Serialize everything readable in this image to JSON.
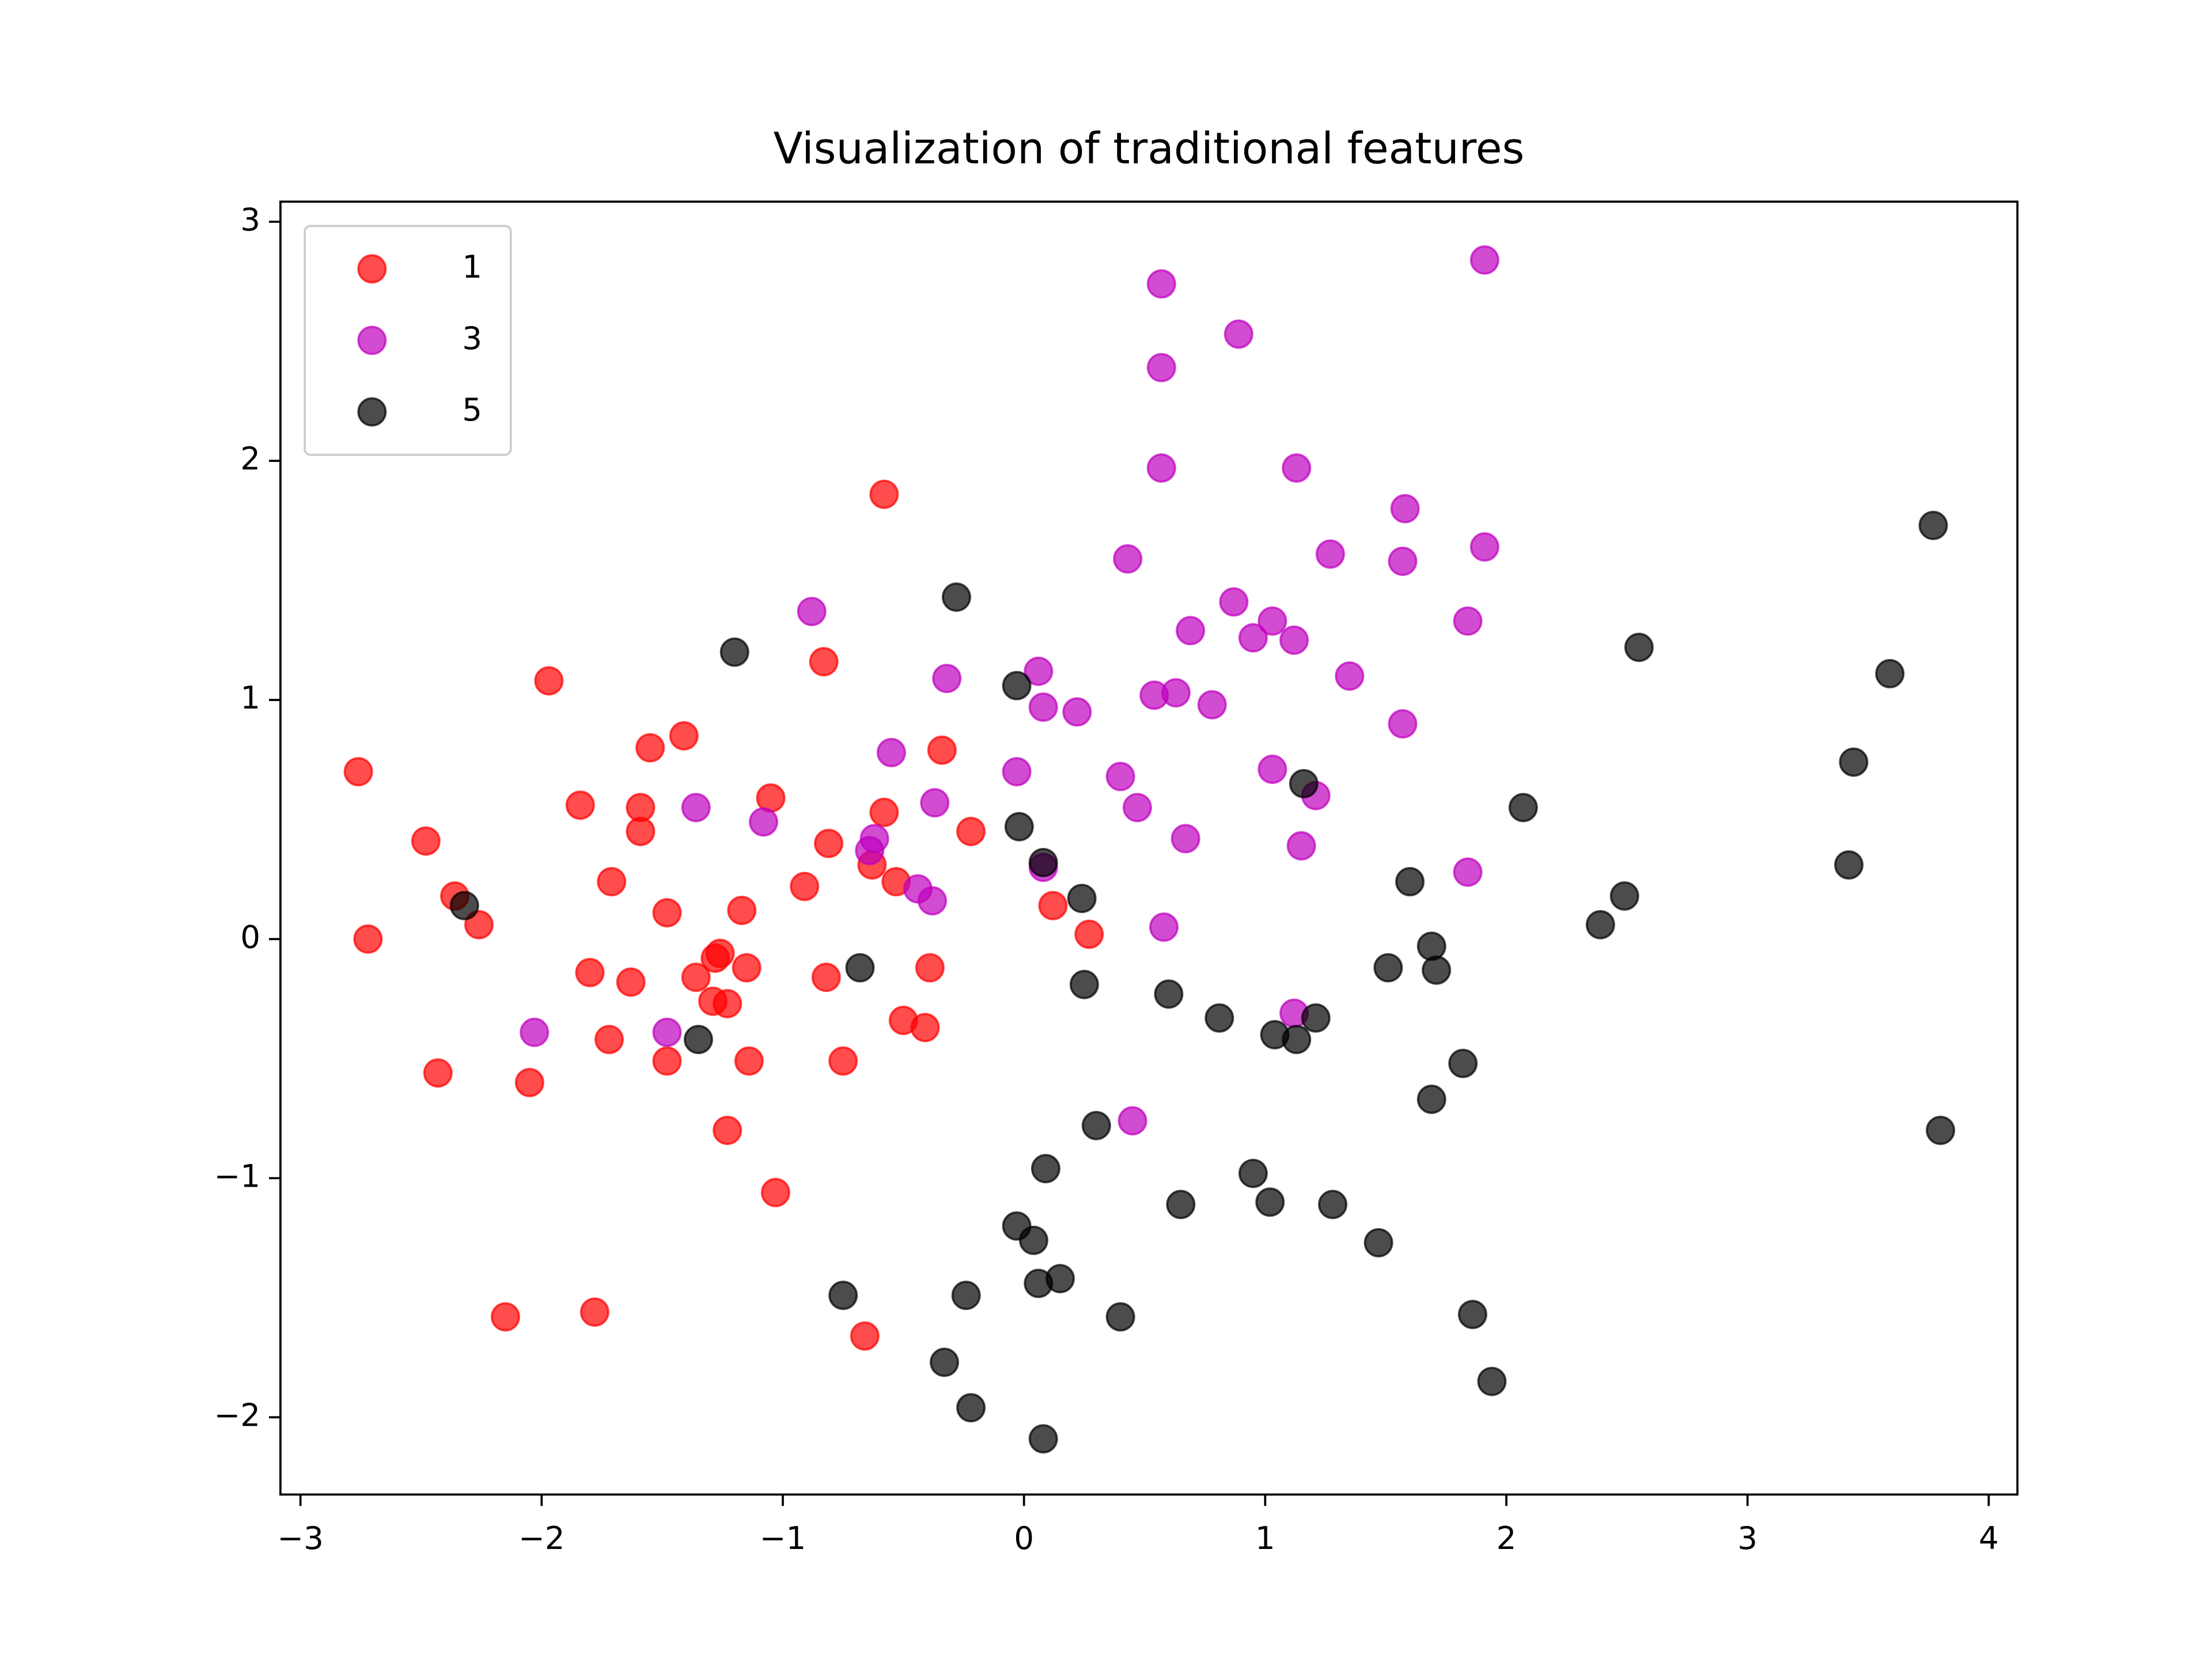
{
  "chart_data": {
    "type": "scatter",
    "title": "Visualization of traditional features",
    "xlim": [
      -3.083,
      4.119
    ],
    "ylim": [
      -2.323,
      3.084
    ],
    "xticks": [
      {
        "value": -3,
        "label": "−3"
      },
      {
        "value": -2,
        "label": "−2"
      },
      {
        "value": -1,
        "label": "−1"
      },
      0,
      1,
      2,
      3,
      4
    ],
    "yticks": [
      {
        "value": -2,
        "label": "−2"
      },
      {
        "value": -1,
        "label": "−1"
      },
      0,
      1,
      2,
      3
    ],
    "legend": "upper left",
    "alpha": 0.7,
    "series": [
      {
        "name": "1",
        "color": "#ff0000",
        "x": [
          -2.76,
          -2.72,
          -2.48,
          -2.43,
          -2.36,
          -2.26,
          -1.97,
          -2.05,
          -2.15,
          -1.84,
          -1.8,
          -1.78,
          -1.71,
          -1.72,
          -1.59,
          -1.59,
          -1.63,
          -1.55,
          -1.48,
          -1.48,
          -1.41,
          -1.36,
          -1.28,
          -1.26,
          -1.29,
          -1.23,
          -1.23,
          -1.17,
          -1.15,
          -1.14,
          -1.05,
          -1.03,
          -0.91,
          -0.83,
          -0.82,
          -0.81,
          -0.75,
          -0.66,
          -0.63,
          -0.58,
          -0.58,
          -0.53,
          -0.5,
          -0.41,
          -0.39,
          -0.34,
          -0.22,
          0.12,
          0.27
        ],
        "values": [
          0.7,
          0.0,
          0.41,
          -0.56,
          0.18,
          0.06,
          1.08,
          -0.6,
          -1.58,
          0.56,
          -0.14,
          -1.56,
          0.24,
          -0.42,
          0.55,
          0.45,
          -0.18,
          0.8,
          0.11,
          -0.51,
          0.85,
          -0.16,
          -0.08,
          -0.06,
          -0.26,
          -0.27,
          -0.8,
          0.12,
          -0.12,
          -0.51,
          0.59,
          -1.06,
          0.22,
          1.16,
          -0.16,
          0.4,
          -0.51,
          -1.66,
          0.31,
          1.86,
          0.53,
          0.24,
          -0.34,
          -0.37,
          -0.12,
          0.79,
          0.45,
          0.14,
          0.02
        ]
      },
      {
        "name": "3",
        "color": "#bf00bf",
        "x": [
          0.57,
          1.91,
          0.89,
          0.57,
          0.57,
          1.13,
          1.58,
          1.91,
          0.43,
          1.27,
          1.57,
          0.87,
          -0.88,
          1.03,
          1.84,
          0.69,
          0.95,
          1.12,
          -0.32,
          1.35,
          0.06,
          0.08,
          0.22,
          0.54,
          0.63,
          0.78,
          1.57,
          -0.55,
          -0.03,
          1.03,
          0.4,
          1.21,
          -1.36,
          0.47,
          -0.37,
          -1.08,
          -0.62,
          -0.64,
          0.67,
          1.15,
          1.84,
          0.08,
          -0.44,
          -0.38,
          0.58,
          -2.03,
          -1.48,
          1.12,
          0.45
        ],
        "values": [
          2.74,
          2.84,
          2.53,
          2.39,
          1.97,
          1.97,
          1.8,
          1.64,
          1.59,
          1.61,
          1.58,
          1.41,
          1.37,
          1.33,
          1.33,
          1.29,
          1.26,
          1.25,
          1.09,
          1.1,
          1.12,
          0.97,
          0.95,
          1.02,
          1.03,
          0.98,
          0.9,
          0.78,
          0.7,
          0.71,
          0.68,
          0.6,
          0.55,
          0.55,
          0.57,
          0.49,
          0.42,
          0.37,
          0.42,
          0.39,
          0.28,
          0.3,
          0.21,
          0.16,
          0.05,
          -0.39,
          -0.39,
          -0.31,
          -0.76
        ]
      },
      {
        "name": "5",
        "color": "#000000",
        "x": [
          3.77,
          -0.28,
          2.55,
          -1.2,
          3.59,
          -0.03,
          3.44,
          1.16,
          2.07,
          -0.02,
          3.42,
          0.08,
          1.6,
          2.49,
          0.24,
          -2.32,
          2.39,
          1.69,
          -0.68,
          1.51,
          1.71,
          0.25,
          0.6,
          0.81,
          1.21,
          1.04,
          1.13,
          -1.35,
          1.82,
          1.69,
          0.3,
          3.8,
          0.09,
          0.95,
          1.02,
          0.65,
          1.28,
          -0.03,
          0.04,
          1.47,
          0.15,
          0.06,
          -0.75,
          -0.24,
          0.4,
          1.86,
          -0.33,
          1.94,
          -0.22,
          0.08
        ],
        "values": [
          1.73,
          1.43,
          1.22,
          1.2,
          1.11,
          1.06,
          0.74,
          0.65,
          0.55,
          0.47,
          0.31,
          0.32,
          0.24,
          0.18,
          0.17,
          0.14,
          0.06,
          -0.03,
          -0.12,
          -0.12,
          -0.13,
          -0.19,
          -0.23,
          -0.33,
          -0.33,
          -0.4,
          -0.42,
          -0.42,
          -0.52,
          -0.67,
          -0.78,
          -0.8,
          -0.96,
          -0.98,
          -1.1,
          -1.11,
          -1.11,
          -1.2,
          -1.26,
          -1.27,
          -1.42,
          -1.44,
          -1.49,
          -1.49,
          -1.58,
          -1.57,
          -1.77,
          -1.85,
          -1.96,
          -2.09
        ]
      }
    ]
  }
}
